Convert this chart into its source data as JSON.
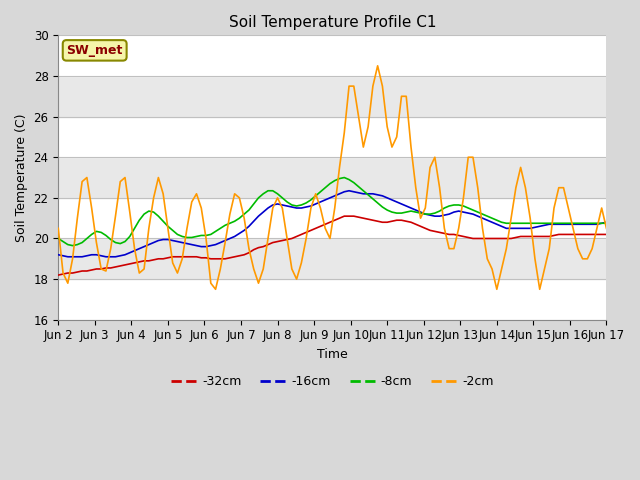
{
  "title": "Soil Temperature Profile C1",
  "xlabel": "Time",
  "ylabel": "Soil Temperature (C)",
  "ylim": [
    16,
    30
  ],
  "annotation": "SW_met",
  "legend_labels": [
    "-32cm",
    "-16cm",
    "-8cm",
    "-2cm"
  ],
  "line_colors": [
    "#cc0000",
    "#0000cc",
    "#00bb00",
    "#ff9900"
  ],
  "tick_labels": [
    "Jun 2",
    "Jun 3",
    "Jun 4",
    "Jun 5",
    "Jun 6",
    "Jun 7",
    "Jun 8",
    "Jun 9",
    "Jun 10",
    "Jun 11",
    "Jun 12",
    "Jun 13",
    "Jun 14",
    "Jun 15",
    "Jun 16",
    "Jun 17"
  ],
  "series_32cm": [
    18.2,
    18.25,
    18.3,
    18.3,
    18.35,
    18.4,
    18.4,
    18.45,
    18.5,
    18.5,
    18.55,
    18.55,
    18.6,
    18.65,
    18.7,
    18.75,
    18.8,
    18.85,
    18.9,
    18.9,
    18.95,
    19.0,
    19.0,
    19.05,
    19.1,
    19.1,
    19.1,
    19.1,
    19.1,
    19.1,
    19.05,
    19.05,
    19.0,
    19.0,
    19.0,
    19.0,
    19.05,
    19.1,
    19.15,
    19.2,
    19.3,
    19.45,
    19.55,
    19.6,
    19.7,
    19.8,
    19.85,
    19.9,
    19.95,
    20.0,
    20.1,
    20.2,
    20.3,
    20.4,
    20.5,
    20.6,
    20.7,
    20.8,
    20.9,
    21.0,
    21.1,
    21.1,
    21.1,
    21.05,
    21.0,
    20.95,
    20.9,
    20.85,
    20.8,
    20.8,
    20.85,
    20.9,
    20.9,
    20.85,
    20.8,
    20.7,
    20.6,
    20.5,
    20.4,
    20.35,
    20.3,
    20.25,
    20.2,
    20.2,
    20.15,
    20.1,
    20.05,
    20.0,
    20.0,
    20.0,
    20.0,
    20.0,
    20.0,
    20.0,
    20.0,
    20.0,
    20.05,
    20.1,
    20.1,
    20.1,
    20.1,
    20.1,
    20.1,
    20.1,
    20.15,
    20.2,
    20.2,
    20.2,
    20.2,
    20.2,
    20.2,
    20.2,
    20.2,
    20.2,
    20.2,
    20.2
  ],
  "series_16cm": [
    19.2,
    19.15,
    19.1,
    19.1,
    19.1,
    19.1,
    19.15,
    19.2,
    19.2,
    19.15,
    19.1,
    19.1,
    19.1,
    19.15,
    19.2,
    19.3,
    19.4,
    19.5,
    19.6,
    19.7,
    19.8,
    19.9,
    19.95,
    19.95,
    19.9,
    19.85,
    19.8,
    19.75,
    19.7,
    19.65,
    19.6,
    19.6,
    19.65,
    19.7,
    19.8,
    19.9,
    20.0,
    20.1,
    20.25,
    20.4,
    20.6,
    20.85,
    21.1,
    21.3,
    21.5,
    21.65,
    21.7,
    21.65,
    21.6,
    21.55,
    21.5,
    21.5,
    21.55,
    21.6,
    21.7,
    21.8,
    21.9,
    22.0,
    22.1,
    22.2,
    22.3,
    22.35,
    22.3,
    22.25,
    22.2,
    22.2,
    22.2,
    22.15,
    22.1,
    22.0,
    21.9,
    21.8,
    21.7,
    21.6,
    21.5,
    21.4,
    21.3,
    21.2,
    21.15,
    21.1,
    21.1,
    21.15,
    21.2,
    21.3,
    21.35,
    21.3,
    21.25,
    21.2,
    21.1,
    21.0,
    20.9,
    20.8,
    20.7,
    20.6,
    20.5,
    20.5,
    20.5,
    20.5,
    20.5,
    20.5,
    20.55,
    20.6,
    20.65,
    20.7,
    20.7,
    20.7,
    20.7,
    20.7,
    20.7,
    20.7,
    20.7,
    20.7,
    20.7,
    20.7,
    20.75,
    20.8
  ],
  "series_8cm": [
    20.0,
    19.85,
    19.7,
    19.65,
    19.7,
    19.8,
    20.0,
    20.2,
    20.35,
    20.3,
    20.15,
    19.95,
    19.8,
    19.75,
    19.85,
    20.1,
    20.5,
    20.9,
    21.2,
    21.35,
    21.3,
    21.1,
    20.85,
    20.6,
    20.4,
    20.2,
    20.1,
    20.05,
    20.05,
    20.1,
    20.15,
    20.15,
    20.2,
    20.35,
    20.5,
    20.65,
    20.75,
    20.85,
    21.0,
    21.2,
    21.4,
    21.7,
    22.0,
    22.2,
    22.35,
    22.35,
    22.2,
    22.0,
    21.8,
    21.65,
    21.6,
    21.65,
    21.75,
    21.9,
    22.1,
    22.3,
    22.5,
    22.7,
    22.85,
    22.95,
    23.0,
    22.9,
    22.75,
    22.55,
    22.35,
    22.15,
    21.95,
    21.75,
    21.55,
    21.4,
    21.3,
    21.25,
    21.25,
    21.3,
    21.35,
    21.3,
    21.25,
    21.2,
    21.2,
    21.25,
    21.35,
    21.5,
    21.6,
    21.65,
    21.65,
    21.6,
    21.5,
    21.4,
    21.3,
    21.2,
    21.1,
    21.0,
    20.9,
    20.8,
    20.75,
    20.75,
    20.75,
    20.75,
    20.75,
    20.75,
    20.75,
    20.75,
    20.75,
    20.75,
    20.75,
    20.75,
    20.75,
    20.75,
    20.75,
    20.75,
    20.75,
    20.75,
    20.75,
    20.75,
    20.75,
    20.75
  ],
  "series_2cm": [
    20.5,
    18.3,
    17.8,
    19.0,
    21.0,
    22.8,
    23.0,
    21.5,
    19.8,
    18.5,
    18.4,
    19.5,
    21.1,
    22.8,
    23.0,
    21.3,
    19.5,
    18.3,
    18.5,
    20.5,
    22.0,
    23.0,
    22.2,
    20.5,
    18.8,
    18.3,
    19.0,
    20.5,
    21.8,
    22.2,
    21.5,
    20.0,
    17.8,
    17.5,
    18.5,
    19.8,
    21.2,
    22.2,
    22.0,
    21.0,
    19.5,
    18.5,
    17.8,
    18.5,
    20.0,
    21.5,
    22.0,
    21.5,
    20.0,
    18.5,
    18.0,
    18.8,
    20.0,
    21.5,
    22.2,
    21.5,
    20.5,
    20.0,
    21.5,
    23.5,
    25.2,
    27.5,
    27.5,
    26.0,
    24.5,
    25.5,
    27.5,
    28.5,
    27.5,
    25.5,
    24.5,
    25.0,
    27.0,
    27.0,
    24.5,
    22.5,
    21.0,
    21.5,
    23.5,
    24.0,
    22.5,
    20.5,
    19.5,
    19.5,
    20.5,
    22.0,
    24.0,
    24.0,
    22.5,
    20.5,
    19.0,
    18.5,
    17.5,
    18.5,
    19.5,
    21.0,
    22.5,
    23.5,
    22.5,
    21.0,
    19.0,
    17.5,
    18.5,
    19.5,
    21.5,
    22.5,
    22.5,
    21.5,
    20.5,
    19.5,
    19.0,
    19.0,
    19.5,
    20.5,
    21.5,
    20.5
  ]
}
